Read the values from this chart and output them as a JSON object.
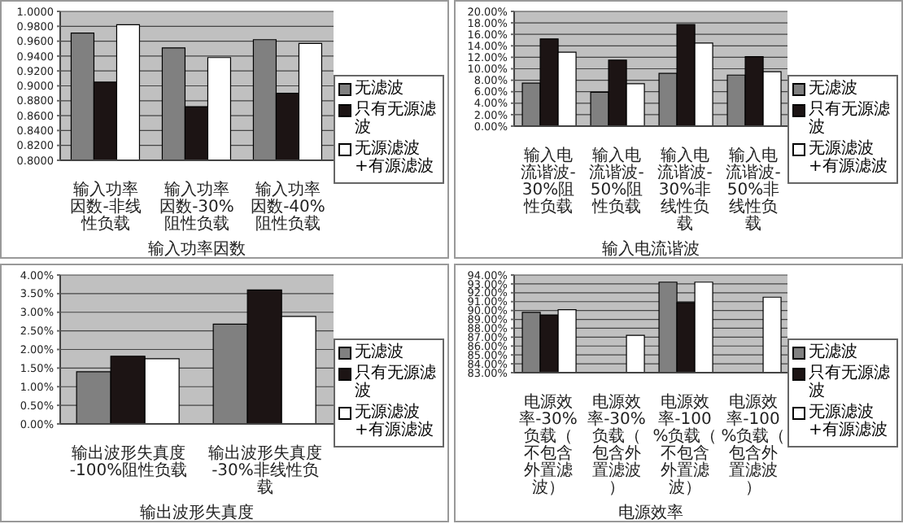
{
  "chart_data": [
    {
      "type": "bar",
      "xlabel": "输入功率因数",
      "categories": [
        "输入功率因数-非线性负载",
        "输入功率因数-30%阻性负载",
        "输入功率因数-40%阻性负载"
      ],
      "series": [
        {
          "name": "无滤波",
          "color": "#808080",
          "values": [
            0.971,
            0.951,
            0.962
          ]
        },
        {
          "name": "只有无源滤波",
          "color": "#1c1414",
          "values": [
            0.905,
            0.872,
            0.89
          ]
        },
        {
          "name": "无源滤波+有源滤波",
          "color": "#ffffff",
          "values": [
            0.982,
            0.938,
            0.957
          ]
        }
      ],
      "ylim": [
        0.8,
        1.0
      ],
      "yticks": [
        {
          "value": 0.8,
          "label": "0.8000"
        },
        {
          "value": 0.82,
          "label": "0.8200"
        },
        {
          "value": 0.84,
          "label": "0.8400"
        },
        {
          "value": 0.86,
          "label": "0.8600"
        },
        {
          "value": 0.88,
          "label": "0.8800"
        },
        {
          "value": 0.9,
          "label": "0.9000"
        },
        {
          "value": 0.92,
          "label": "0.9200"
        },
        {
          "value": 0.94,
          "label": "0.9400"
        },
        {
          "value": 0.96,
          "label": "0.9600"
        },
        {
          "value": 0.98,
          "label": "0.9800"
        },
        {
          "value": 1.0,
          "label": "1.0000"
        }
      ],
      "grid": "y",
      "legend": "right"
    },
    {
      "type": "bar",
      "xlabel": "输入电流谐波",
      "categories": [
        "输入电流谐波-30%阻性负载",
        "输入电流谐波-50%阻性负载",
        "输入电流谐波-30%非线性负载",
        "输入电流谐波-50%非线性负载"
      ],
      "series": [
        {
          "name": "无滤波",
          "color": "#808080",
          "values": [
            7.5,
            5.9,
            9.2,
            8.9
          ]
        },
        {
          "name": "只有无源滤波",
          "color": "#1c1414",
          "values": [
            15.2,
            11.5,
            17.7,
            12.1
          ]
        },
        {
          "name": "无源滤波+有源滤波",
          "color": "#ffffff",
          "values": [
            12.9,
            7.4,
            14.5,
            9.5
          ]
        }
      ],
      "ylim": [
        0,
        20
      ],
      "yticks": [
        {
          "value": 0,
          "label": "0.00%"
        },
        {
          "value": 2,
          "label": "2.00%"
        },
        {
          "value": 4,
          "label": "4.00%"
        },
        {
          "value": 6,
          "label": "6.00%"
        },
        {
          "value": 8,
          "label": "8.00%"
        },
        {
          "value": 10,
          "label": "10.00%"
        },
        {
          "value": 12,
          "label": "12.00%"
        },
        {
          "value": 14,
          "label": "14.00%"
        },
        {
          "value": 16,
          "label": "16.00%"
        },
        {
          "value": 18,
          "label": "18.00%"
        },
        {
          "value": 20,
          "label": "20.00%"
        }
      ],
      "grid": "y",
      "legend": "right"
    },
    {
      "type": "bar",
      "xlabel": "输出波形失真度",
      "categories": [
        "输出波形失真度-100%阻性负载",
        "输出波形失真度-30%非线性负载"
      ],
      "series": [
        {
          "name": "无滤波",
          "color": "#808080",
          "values": [
            1.4,
            2.68
          ]
        },
        {
          "name": "只有无源滤波",
          "color": "#1c1414",
          "values": [
            1.82,
            3.6
          ]
        },
        {
          "name": "无源滤波+有源滤波",
          "color": "#ffffff",
          "values": [
            1.75,
            2.89
          ]
        }
      ],
      "ylim": [
        0,
        4
      ],
      "yticks": [
        {
          "value": 0,
          "label": "0.00%"
        },
        {
          "value": 0.5,
          "label": "0.50%"
        },
        {
          "value": 1,
          "label": "1.00%"
        },
        {
          "value": 1.5,
          "label": "1.50%"
        },
        {
          "value": 2,
          "label": "2.00%"
        },
        {
          "value": 2.5,
          "label": "2.50%"
        },
        {
          "value": 3,
          "label": "3.00%"
        },
        {
          "value": 3.5,
          "label": "3.50%"
        },
        {
          "value": 4,
          "label": "4.00%"
        }
      ],
      "grid": "y",
      "legend": "right"
    },
    {
      "type": "bar",
      "xlabel": "电源效率",
      "categories": [
        "电源效率-30%负载（不包含外置滤波）",
        "电源效率-30%负载（包含外置滤波）",
        "电源效率-100%负载（不包含外置滤波）",
        "电源效率-100%负载（包含外置滤波）"
      ],
      "series": [
        {
          "name": "无滤波",
          "color": "#808080",
          "values": [
            89.8,
            null,
            93.2,
            null
          ]
        },
        {
          "name": "只有无源滤波",
          "color": "#1c1414",
          "values": [
            89.5,
            null,
            90.9,
            null
          ]
        },
        {
          "name": "无源滤波+有源滤波",
          "color": "#ffffff",
          "values": [
            90.1,
            87.2,
            93.2,
            91.5
          ]
        }
      ],
      "ylim": [
        83,
        94
      ],
      "yticks": [
        {
          "value": 83,
          "label": "83.00%"
        },
        {
          "value": 84,
          "label": "84.00%"
        },
        {
          "value": 85,
          "label": "85.00%"
        },
        {
          "value": 86,
          "label": "86.00%"
        },
        {
          "value": 87,
          "label": "87.00%"
        },
        {
          "value": 88,
          "label": "88.00%"
        },
        {
          "value": 89,
          "label": "89.00%"
        },
        {
          "value": 90,
          "label": "90.00%"
        },
        {
          "value": 91,
          "label": "91.00%"
        },
        {
          "value": 92,
          "label": "92.00%"
        },
        {
          "value": 93,
          "label": "93.00%"
        },
        {
          "value": 94,
          "label": "94.00%"
        }
      ],
      "grid": "y",
      "legend": "right"
    }
  ]
}
